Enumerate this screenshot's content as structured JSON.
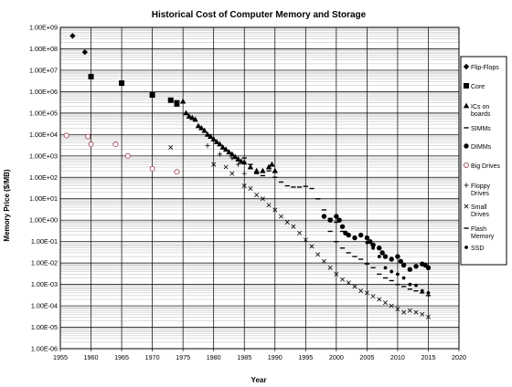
{
  "chart_data": {
    "type": "scatter",
    "title": "Historical Cost of Computer Memory and Storage",
    "xlabel": "Year",
    "ylabel": "Memory Price ($/MB)",
    "xlim": [
      1955,
      2020
    ],
    "ylim": [
      1e-06,
      1000000000.0
    ],
    "y_scale": "log",
    "grid": true,
    "legend_position": "right",
    "x_ticks": [
      "1955",
      "1960",
      "1965",
      "1970",
      "1975",
      "1980",
      "1985",
      "1990",
      "1995",
      "2000",
      "2005",
      "2010",
      "2015",
      "2020"
    ],
    "y_ticks": [
      "1.00E+09",
      "1.00E+08",
      "1.00E+07",
      "1.00E+06",
      "1.00E+05",
      "1.00E+04",
      "1.00E+03",
      "1.00E+02",
      "1.00E+01",
      "1.00E+00",
      "1.00E-01",
      "1.00E-02",
      "1.00E-03",
      "1.00E-04",
      "1.00E-05",
      "1.00E-06"
    ],
    "series": [
      {
        "name": "Flip-Flops",
        "marker": "diamond",
        "points": [
          [
            1957,
            400000000
          ],
          [
            1959,
            70000000
          ]
        ]
      },
      {
        "name": "Core",
        "marker": "square",
        "points": [
          [
            1960,
            5000000
          ],
          [
            1965,
            2500000
          ],
          [
            1970,
            700000
          ],
          [
            1973,
            400000
          ],
          [
            1974,
            300000
          ]
        ]
      },
      {
        "name": "ICs on boards",
        "marker": "triangle",
        "points": [
          [
            1974,
            250000
          ],
          [
            1975,
            350000
          ],
          [
            1975.5,
            100000
          ],
          [
            1976,
            70000
          ],
          [
            1976.5,
            60000
          ],
          [
            1977,
            50000
          ],
          [
            1977.5,
            25000
          ],
          [
            1978,
            20000
          ],
          [
            1978.5,
            15000
          ],
          [
            1979,
            10000
          ],
          [
            1979.5,
            8000
          ],
          [
            1980,
            6000
          ],
          [
            1980.5,
            4500
          ],
          [
            1981,
            3500
          ],
          [
            1981.5,
            2500
          ],
          [
            1982,
            2000
          ],
          [
            1982.5,
            1500
          ],
          [
            1983,
            1200
          ],
          [
            1983.5,
            900
          ],
          [
            1984,
            700
          ],
          [
            1984.5,
            550
          ],
          [
            1985,
            500
          ],
          [
            1986,
            300
          ],
          [
            1987,
            200
          ],
          [
            1988,
            200
          ],
          [
            1989,
            300
          ],
          [
            1989.5,
            400
          ],
          [
            1990,
            200
          ]
        ]
      },
      {
        "name": "SIMMs",
        "marker": "dash",
        "points": [
          [
            1985,
            800
          ],
          [
            1986,
            400
          ],
          [
            1987,
            150
          ],
          [
            1988,
            120
          ],
          [
            1989,
            200
          ],
          [
            1990,
            100
          ],
          [
            1991,
            60
          ],
          [
            1992,
            40
          ],
          [
            1993,
            35
          ],
          [
            1994,
            35
          ],
          [
            1995,
            38
          ],
          [
            1996,
            30
          ],
          [
            1997,
            10
          ],
          [
            1998,
            3
          ],
          [
            1999,
            1.2
          ],
          [
            2000,
            0.8
          ],
          [
            2001,
            0.3
          ]
        ]
      },
      {
        "name": "DIMMs",
        "marker": "dot",
        "points": [
          [
            1998,
            1.5
          ],
          [
            1999,
            1.0
          ],
          [
            2000,
            1.5
          ],
          [
            2000.5,
            1.0
          ],
          [
            2001,
            0.5
          ],
          [
            2001.5,
            0.25
          ],
          [
            2002,
            0.2
          ],
          [
            2003,
            0.15
          ],
          [
            2004,
            0.2
          ],
          [
            2005,
            0.15
          ],
          [
            2005.5,
            0.1
          ],
          [
            2006,
            0.07
          ],
          [
            2007,
            0.05
          ],
          [
            2007.5,
            0.03
          ],
          [
            2008,
            0.02
          ],
          [
            2009,
            0.015
          ],
          [
            2010,
            0.02
          ],
          [
            2010.5,
            0.012
          ],
          [
            2011,
            0.008
          ],
          [
            2012,
            0.005
          ],
          [
            2013,
            0.007
          ],
          [
            2014,
            0.009
          ],
          [
            2014.5,
            0.008
          ],
          [
            2015,
            0.006
          ]
        ]
      },
      {
        "name": "Big Drives",
        "marker": "circle",
        "points": [
          [
            1956,
            9000
          ],
          [
            1959.5,
            8000
          ],
          [
            1960,
            3500
          ],
          [
            1964,
            3500
          ],
          [
            1966,
            1000
          ],
          [
            1970,
            250
          ],
          [
            1974,
            180
          ]
        ]
      },
      {
        "name": "Floppy Drives",
        "marker": "plus",
        "points": [
          [
            1979,
            3000
          ],
          [
            1981,
            1200
          ],
          [
            1983,
            800
          ],
          [
            1984,
            400
          ],
          [
            1985,
            150
          ]
        ]
      },
      {
        "name": "Small Drives",
        "marker": "cross",
        "points": [
          [
            1973,
            2500
          ],
          [
            1980,
            400
          ],
          [
            1982,
            300
          ],
          [
            1983,
            150
          ],
          [
            1985,
            40
          ],
          [
            1986,
            30
          ],
          [
            1987,
            15
          ],
          [
            1988,
            10
          ],
          [
            1989,
            5
          ],
          [
            1990,
            3
          ],
          [
            1991,
            1.5
          ],
          [
            1992,
            0.8
          ],
          [
            1993,
            0.5
          ],
          [
            1994,
            0.25
          ],
          [
            1995,
            0.12
          ],
          [
            1996,
            0.06
          ],
          [
            1997,
            0.025
          ],
          [
            1998,
            0.012
          ],
          [
            1999,
            0.006
          ],
          [
            2000,
            0.003
          ],
          [
            2001,
            0.0017
          ],
          [
            2002,
            0.0012
          ],
          [
            2003,
            0.0008
          ],
          [
            2004,
            0.0005
          ],
          [
            2005,
            0.0004
          ],
          [
            2006,
            0.00028
          ],
          [
            2007,
            0.0002
          ],
          [
            2008,
            0.00014
          ],
          [
            2009,
            0.0001
          ],
          [
            2010,
            7e-05
          ],
          [
            2011,
            5e-05
          ],
          [
            2012,
            6e-05
          ],
          [
            2013,
            5e-05
          ],
          [
            2014,
            4e-05
          ],
          [
            2015,
            3e-05
          ]
        ]
      },
      {
        "name": "Flash Memory",
        "marker": "dash",
        "points": [
          [
            1999,
            0.3
          ],
          [
            2000,
            0.1
          ],
          [
            2001,
            0.05
          ],
          [
            2002,
            0.03
          ],
          [
            2003,
            0.02
          ],
          [
            2004,
            0.015
          ],
          [
            2005,
            0.009
          ],
          [
            2006,
            0.006
          ],
          [
            2007,
            0.003
          ],
          [
            2008,
            0.002
          ],
          [
            2009,
            0.0015
          ],
          [
            2010,
            0.001
          ],
          [
            2011,
            0.0008
          ],
          [
            2012,
            0.0006
          ],
          [
            2013,
            0.0005
          ],
          [
            2014,
            0.0004
          ],
          [
            2015,
            0.0003
          ]
        ]
      },
      {
        "name": "SSD",
        "marker": "dot-small",
        "points": [
          [
            2004,
            0.2
          ],
          [
            2005,
            0.09
          ],
          [
            2006,
            0.05
          ],
          [
            2007,
            0.02
          ],
          [
            2008,
            0.006
          ],
          [
            2009,
            0.004
          ],
          [
            2010,
            0.003
          ],
          [
            2011,
            0.002
          ],
          [
            2012,
            0.001
          ],
          [
            2013,
            0.0009
          ],
          [
            2014,
            0.0005
          ],
          [
            2015,
            0.0004
          ]
        ]
      }
    ]
  }
}
